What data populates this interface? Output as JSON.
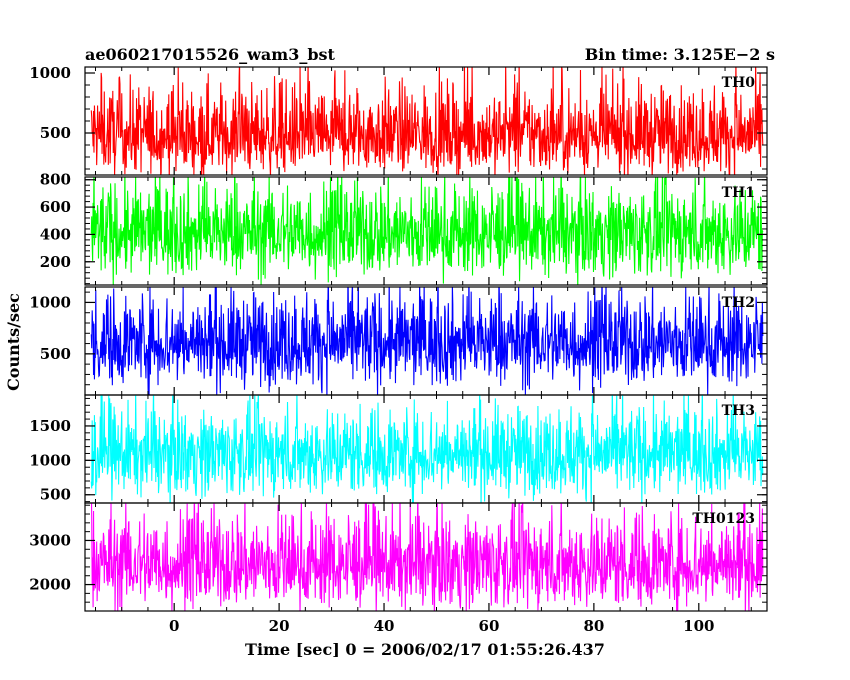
{
  "chart_data": {
    "type": "line",
    "title_left": "ae060217015526_wam3_bst",
    "title_right": "Bin time: 3.125E−2 s",
    "xlabel": "Time [sec] 0 = 2006/02/17 01:55:26.437",
    "ylabel": "Counts/sec",
    "xlim": [
      -17,
      113
    ],
    "x_ticks": [
      0,
      20,
      40,
      60,
      80,
      100
    ],
    "x_tick_labels": [
      "0",
      "20",
      "40",
      "60",
      "80",
      "100"
    ],
    "x_data_range": [
      -15.8,
      112.2
    ],
    "bin_time": 0.03125,
    "panels": [
      {
        "name": "TH0",
        "color": "#ff0000",
        "ylim": [
          150,
          1050
        ],
        "ticks": [
          500,
          1000
        ],
        "tick_labels": [
          "500",
          "1000"
        ],
        "mean": 470,
        "spread_low": 320,
        "spread_high": 470
      },
      {
        "name": "TH1",
        "color": "#00ff00",
        "ylim": [
          30,
          820
        ],
        "ticks": [
          200,
          400,
          600,
          800
        ],
        "tick_labels": [
          "200",
          "400",
          "600",
          "800"
        ],
        "mean": 400,
        "spread_low": 320,
        "spread_high": 420
      },
      {
        "name": "TH2",
        "color": "#0000ff",
        "ylim": [
          100,
          1150
        ],
        "ticks": [
          500,
          1000
        ],
        "tick_labels": [
          "500",
          "1000"
        ],
        "mean": 600,
        "spread_low": 440,
        "spread_high": 550
      },
      {
        "name": "TH3",
        "color": "#00ffff",
        "ylim": [
          380,
          1950
        ],
        "ticks": [
          500,
          1000,
          1500
        ],
        "tick_labels": [
          "500",
          "1000",
          "1500"
        ],
        "mean": 1080,
        "spread_low": 620,
        "spread_high": 780
      },
      {
        "name": "TH0123",
        "color": "#ff00ff",
        "ylim": [
          1400,
          3850
        ],
        "ticks": [
          2000,
          3000
        ],
        "tick_labels": [
          "2000",
          "3000"
        ],
        "mean": 2420,
        "spread_low": 1000,
        "spread_high": 1400
      }
    ]
  }
}
